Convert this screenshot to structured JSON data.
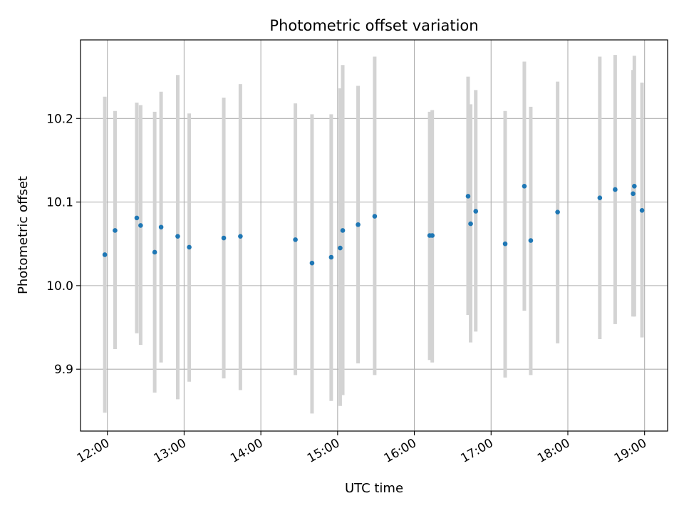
{
  "chart_data": {
    "type": "scatter",
    "title": "Photometric offset variation",
    "xlabel": "UTC time",
    "ylabel": "Photometric offset",
    "x_ticks": [
      "12:00",
      "13:00",
      "14:00",
      "15:00",
      "16:00",
      "17:00",
      "18:00",
      "19:00"
    ],
    "y_ticks": [
      "9.9",
      "10.0",
      "10.1",
      "10.2"
    ],
    "xlim": [
      "11:39",
      "19:18"
    ],
    "ylim": [
      9.826,
      10.294
    ],
    "grid": true,
    "colors": {
      "points": "#1f77b4",
      "errorbars": "#d3d3d3",
      "grid": "#b0b0b0"
    },
    "series": [
      {
        "x": [
          "11:58",
          "12:06",
          "12:23",
          "12:26",
          "12:37",
          "12:42",
          "12:55",
          "13:04",
          "13:31",
          "13:44",
          "14:27",
          "14:40",
          "14:55",
          "15:02",
          "15:04",
          "15:16",
          "15:29",
          "16:12",
          "16:14",
          "16:42",
          "16:44",
          "16:48",
          "17:11",
          "17:26",
          "17:31",
          "17:52",
          "18:25",
          "18:37",
          "18:51",
          "18:52",
          "18:58"
        ],
        "y": [
          10.037,
          10.066,
          10.081,
          10.072,
          10.04,
          10.07,
          10.059,
          10.046,
          10.057,
          10.059,
          10.055,
          10.027,
          10.034,
          10.045,
          10.066,
          10.073,
          10.083,
          10.06,
          10.06,
          10.107,
          10.074,
          10.089,
          10.05,
          10.119,
          10.054,
          10.088,
          10.105,
          10.115,
          10.11,
          10.119,
          10.09
        ],
        "err_low": [
          9.848,
          9.924,
          9.943,
          9.929,
          9.872,
          9.908,
          9.864,
          9.885,
          9.889,
          9.875,
          9.893,
          9.847,
          9.862,
          9.856,
          9.869,
          9.907,
          9.893,
          9.911,
          9.908,
          9.965,
          9.932,
          9.945,
          9.89,
          9.97,
          9.893,
          9.931,
          9.936,
          9.954,
          9.963,
          9.963,
          9.938
        ],
        "err_high": [
          10.226,
          10.209,
          10.219,
          10.216,
          10.208,
          10.232,
          10.252,
          10.206,
          10.225,
          10.241,
          10.218,
          10.205,
          10.205,
          10.236,
          10.264,
          10.239,
          10.274,
          10.208,
          10.21,
          10.25,
          10.217,
          10.234,
          10.209,
          10.268,
          10.214,
          10.244,
          10.274,
          10.276,
          10.258,
          10.275,
          10.243
        ]
      }
    ]
  }
}
